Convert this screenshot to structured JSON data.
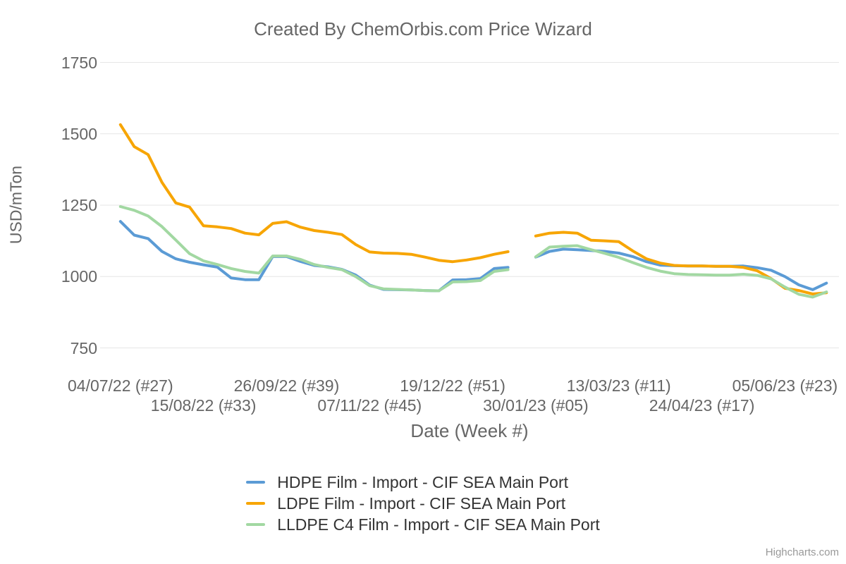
{
  "credit": "Highcharts.com",
  "chart_data": {
    "type": "line",
    "title": "Created By ChemOrbis.com Price Wizard",
    "x_unit": "week",
    "grid": "horizontal-only",
    "legend_position": "bottom-center",
    "gap_at_index": 29,
    "y_axis": {
      "title": "USD/mTon",
      "min": 750,
      "max": 1750,
      "ticks": [
        750,
        1000,
        1250,
        1500,
        1750
      ]
    },
    "x_axis": {
      "title": "Date (Week #)",
      "tick_indices": [
        0,
        6,
        12,
        18,
        24,
        30,
        36,
        42,
        48
      ],
      "tick_labels": [
        "04/07/22 (#27)",
        "15/08/22 (#33)",
        "26/09/22 (#39)",
        "07/11/22 (#45)",
        "19/12/22 (#51)",
        "30/01/23 (#05)",
        "13/03/23 (#11)",
        "24/04/23 (#17)",
        "05/06/23 (#23)"
      ]
    },
    "series": [
      {
        "name": "HDPE Film - Import - CIF SEA Main Port",
        "color": "#5b9bd5",
        "values": [
          1193,
          1145,
          1133,
          1088,
          1062,
          1050,
          1041,
          1033,
          995,
          989,
          989,
          1070,
          1070,
          1053,
          1039,
          1034,
          1025,
          1005,
          970,
          955,
          954,
          953,
          951,
          950,
          988,
          989,
          993,
          1028,
          1032,
          null,
          1068,
          1088,
          1096,
          1094,
          1091,
          1088,
          1082,
          1070,
          1052,
          1040,
          1038,
          1037,
          1037,
          1036,
          1036,
          1037,
          1031,
          1022,
          1000,
          971,
          954,
          977
        ]
      },
      {
        "name": "LDPE Film - Import - CIF SEA Main Port",
        "color": "#f7a503",
        "values": [
          1532,
          1455,
          1427,
          1330,
          1258,
          1243,
          1178,
          1174,
          1168,
          1152,
          1146,
          1186,
          1192,
          1173,
          1161,
          1155,
          1147,
          1112,
          1086,
          1082,
          1081,
          1078,
          1068,
          1057,
          1052,
          1058,
          1066,
          1078,
          1087,
          null,
          1142,
          1152,
          1155,
          1152,
          1127,
          1125,
          1122,
          1090,
          1062,
          1047,
          1039,
          1037,
          1037,
          1036,
          1036,
          1032,
          1020,
          993,
          959,
          951,
          939,
          943
        ]
      },
      {
        "name": "LLDPE C4 Film - Import - CIF SEA Main Port",
        "color": "#a2d8a2",
        "values": [
          1245,
          1232,
          1212,
          1175,
          1128,
          1080,
          1055,
          1042,
          1028,
          1018,
          1012,
          1072,
          1072,
          1060,
          1042,
          1032,
          1024,
          1000,
          968,
          957,
          955,
          953,
          951,
          950,
          981,
          982,
          986,
          1018,
          1024,
          null,
          1069,
          1103,
          1106,
          1108,
          1094,
          1081,
          1067,
          1049,
          1032,
          1019,
          1010,
          1007,
          1006,
          1005,
          1005,
          1008,
          1004,
          992,
          963,
          938,
          928,
          946
        ]
      }
    ]
  }
}
